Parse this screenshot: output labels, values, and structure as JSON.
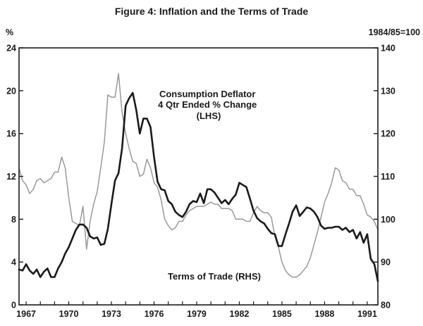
{
  "chart_data": {
    "type": "line",
    "title": "Figure 4: Inflation and the Terms of Trade",
    "left_axis": {
      "unit": "%",
      "ticks": [
        "0",
        "4",
        "8",
        "12",
        "16",
        "20",
        "24"
      ],
      "ylim": [
        0,
        24
      ]
    },
    "right_axis": {
      "unit": "1984/85=100",
      "ticks": [
        "80",
        "90",
        "100",
        "110",
        "120",
        "130",
        "140"
      ],
      "ylim": [
        80,
        140
      ]
    },
    "x_axis": {
      "ticks": [
        "1967",
        "1970",
        "1973",
        "1976",
        "1979",
        "1982",
        "1985",
        "1988",
        "1991"
      ],
      "xlim": [
        1966.5,
        1991.75
      ]
    },
    "grid": false,
    "annotations": [
      {
        "lines": [
          "Consumption Deflator",
          "4 Qtr Ended % Change",
          "(LHS)"
        ]
      },
      {
        "lines": [
          "Terms of Trade (RHS)"
        ]
      }
    ],
    "series": [
      {
        "name": "Consumption Deflator 4 Qtr Ended % Change (LHS)",
        "axis": "left",
        "color": "#1a1a1a",
        "points": [
          [
            1966.5,
            3.3
          ],
          [
            1966.75,
            3.2
          ],
          [
            1967.0,
            3.8
          ],
          [
            1967.25,
            3.2
          ],
          [
            1967.5,
            2.9
          ],
          [
            1967.75,
            3.3
          ],
          [
            1968.0,
            2.6
          ],
          [
            1968.25,
            3.1
          ],
          [
            1968.5,
            3.4
          ],
          [
            1968.75,
            2.6
          ],
          [
            1969.0,
            2.6
          ],
          [
            1969.25,
            3.4
          ],
          [
            1969.5,
            4.0
          ],
          [
            1969.75,
            4.8
          ],
          [
            1970.0,
            5.4
          ],
          [
            1970.25,
            6.2
          ],
          [
            1970.5,
            7.0
          ],
          [
            1970.75,
            7.5
          ],
          [
            1971.0,
            7.5
          ],
          [
            1971.25,
            7.2
          ],
          [
            1971.5,
            6.4
          ],
          [
            1971.75,
            6.2
          ],
          [
            1972.0,
            6.3
          ],
          [
            1972.25,
            5.6
          ],
          [
            1972.5,
            5.7
          ],
          [
            1972.75,
            7.1
          ],
          [
            1973.0,
            9.4
          ],
          [
            1973.25,
            11.6
          ],
          [
            1973.5,
            12.3
          ],
          [
            1973.75,
            14.6
          ],
          [
            1974.0,
            18.6
          ],
          [
            1974.25,
            19.3
          ],
          [
            1974.5,
            19.8
          ],
          [
            1974.75,
            18.2
          ],
          [
            1975.0,
            16.0
          ],
          [
            1975.25,
            17.4
          ],
          [
            1975.5,
            17.4
          ],
          [
            1975.75,
            16.6
          ],
          [
            1976.0,
            13.8
          ],
          [
            1976.25,
            11.5
          ],
          [
            1976.5,
            10.8
          ],
          [
            1976.75,
            10.7
          ],
          [
            1977.0,
            9.7
          ],
          [
            1977.25,
            9.4
          ],
          [
            1977.5,
            8.7
          ],
          [
            1977.75,
            8.4
          ],
          [
            1978.0,
            8.2
          ],
          [
            1978.25,
            8.7
          ],
          [
            1978.5,
            9.4
          ],
          [
            1978.75,
            9.7
          ],
          [
            1979.0,
            9.6
          ],
          [
            1979.25,
            10.4
          ],
          [
            1979.5,
            9.5
          ],
          [
            1979.75,
            10.8
          ],
          [
            1980.0,
            10.8
          ],
          [
            1980.25,
            10.5
          ],
          [
            1980.5,
            10.0
          ],
          [
            1980.75,
            9.5
          ],
          [
            1981.0,
            9.8
          ],
          [
            1981.25,
            9.4
          ],
          [
            1981.5,
            9.9
          ],
          [
            1981.75,
            10.3
          ],
          [
            1982.0,
            11.4
          ],
          [
            1982.25,
            11.2
          ],
          [
            1982.5,
            11.0
          ],
          [
            1982.75,
            9.9
          ],
          [
            1983.0,
            8.8
          ],
          [
            1983.25,
            8.1
          ],
          [
            1983.5,
            7.8
          ],
          [
            1983.75,
            7.6
          ],
          [
            1984.0,
            7.1
          ],
          [
            1984.25,
            6.7
          ],
          [
            1984.5,
            6.6
          ],
          [
            1984.75,
            5.5
          ],
          [
            1985.0,
            5.5
          ],
          [
            1985.25,
            6.6
          ],
          [
            1985.5,
            7.6
          ],
          [
            1985.75,
            8.7
          ],
          [
            1986.0,
            9.3
          ],
          [
            1986.25,
            8.3
          ],
          [
            1986.5,
            8.7
          ],
          [
            1986.75,
            9.1
          ],
          [
            1987.0,
            9.0
          ],
          [
            1987.25,
            8.7
          ],
          [
            1987.5,
            8.2
          ],
          [
            1987.75,
            7.4
          ],
          [
            1988.0,
            7.1
          ],
          [
            1988.25,
            7.2
          ],
          [
            1988.5,
            7.2
          ],
          [
            1988.75,
            7.3
          ],
          [
            1989.0,
            7.3
          ],
          [
            1989.25,
            7.0
          ],
          [
            1989.5,
            7.2
          ],
          [
            1989.75,
            6.8
          ],
          [
            1990.0,
            7.0
          ],
          [
            1990.25,
            6.2
          ],
          [
            1990.5,
            6.8
          ],
          [
            1990.75,
            5.8
          ],
          [
            1991.0,
            6.6
          ],
          [
            1991.25,
            4.3
          ],
          [
            1991.5,
            3.8
          ],
          [
            1991.75,
            2.2
          ]
        ]
      },
      {
        "name": "Terms of Trade (RHS)",
        "axis": "right",
        "color": "#999999",
        "points": [
          [
            1966.5,
            112.0
          ],
          [
            1966.75,
            109.0
          ],
          [
            1967.0,
            108.0
          ],
          [
            1967.25,
            106.0
          ],
          [
            1967.5,
            107.0
          ],
          [
            1967.75,
            109.0
          ],
          [
            1968.0,
            109.5
          ],
          [
            1968.25,
            108.5
          ],
          [
            1968.5,
            109.0
          ],
          [
            1968.75,
            109.5
          ],
          [
            1969.0,
            111.0
          ],
          [
            1969.25,
            111.0
          ],
          [
            1969.5,
            114.5
          ],
          [
            1969.75,
            112.0
          ],
          [
            1970.0,
            105.0
          ],
          [
            1970.25,
            99.5
          ],
          [
            1970.5,
            99.0
          ],
          [
            1970.75,
            98.5
          ],
          [
            1971.0,
            103.0
          ],
          [
            1971.25,
            93.0
          ],
          [
            1971.5,
            99.5
          ],
          [
            1971.75,
            103.5
          ],
          [
            1972.0,
            106.5
          ],
          [
            1972.25,
            112.0
          ],
          [
            1972.5,
            118.0
          ],
          [
            1972.75,
            129.0
          ],
          [
            1973.0,
            128.5
          ],
          [
            1973.25,
            128.5
          ],
          [
            1973.5,
            134.0
          ],
          [
            1973.75,
            125.0
          ],
          [
            1974.0,
            120.0
          ],
          [
            1974.25,
            116.5
          ],
          [
            1974.5,
            113.5
          ],
          [
            1974.75,
            113.0
          ],
          [
            1975.0,
            110.0
          ],
          [
            1975.25,
            110.5
          ],
          [
            1975.5,
            114.0
          ],
          [
            1975.75,
            112.0
          ],
          [
            1976.0,
            108.5
          ],
          [
            1976.25,
            107.5
          ],
          [
            1976.5,
            104.5
          ],
          [
            1976.75,
            100.0
          ],
          [
            1977.0,
            98.5
          ],
          [
            1977.25,
            97.5
          ],
          [
            1977.5,
            98.0
          ],
          [
            1977.75,
            99.5
          ],
          [
            1978.0,
            99.5
          ],
          [
            1978.25,
            101.0
          ],
          [
            1978.5,
            102.0
          ],
          [
            1978.75,
            102.5
          ],
          [
            1979.0,
            103.0
          ],
          [
            1979.25,
            103.0
          ],
          [
            1979.5,
            103.0
          ],
          [
            1979.75,
            103.5
          ],
          [
            1980.0,
            104.0
          ],
          [
            1980.25,
            103.5
          ],
          [
            1980.5,
            103.5
          ],
          [
            1980.75,
            102.5
          ],
          [
            1981.0,
            102.5
          ],
          [
            1981.25,
            102.5
          ],
          [
            1981.5,
            102.0
          ],
          [
            1981.75,
            100.0
          ],
          [
            1982.0,
            100.0
          ],
          [
            1982.25,
            100.0
          ],
          [
            1982.5,
            99.5
          ],
          [
            1982.75,
            99.5
          ],
          [
            1983.0,
            101.5
          ],
          [
            1983.25,
            103.0
          ],
          [
            1983.5,
            102.0
          ],
          [
            1983.75,
            101.5
          ],
          [
            1984.0,
            101.5
          ],
          [
            1984.25,
            100.5
          ],
          [
            1984.5,
            96.0
          ],
          [
            1984.75,
            93.5
          ],
          [
            1985.0,
            90.0
          ],
          [
            1985.25,
            88.0
          ],
          [
            1985.5,
            87.0
          ],
          [
            1985.75,
            86.5
          ],
          [
            1986.0,
            86.5
          ],
          [
            1986.25,
            87.0
          ],
          [
            1986.5,
            88.0
          ],
          [
            1986.75,
            89.0
          ],
          [
            1987.0,
            91.0
          ],
          [
            1987.25,
            94.0
          ],
          [
            1987.5,
            97.0
          ],
          [
            1987.75,
            100.5
          ],
          [
            1988.0,
            104.0
          ],
          [
            1988.25,
            106.0
          ],
          [
            1988.5,
            108.5
          ],
          [
            1988.75,
            112.0
          ],
          [
            1989.0,
            111.5
          ],
          [
            1989.25,
            109.0
          ],
          [
            1989.5,
            108.5
          ],
          [
            1989.75,
            107.0
          ],
          [
            1990.0,
            107.0
          ],
          [
            1990.25,
            105.5
          ],
          [
            1990.5,
            105.5
          ],
          [
            1990.75,
            103.5
          ],
          [
            1991.0,
            101.0
          ],
          [
            1991.25,
            100.5
          ],
          [
            1991.5,
            99.5
          ],
          [
            1991.75,
            97.5
          ]
        ]
      }
    ]
  }
}
